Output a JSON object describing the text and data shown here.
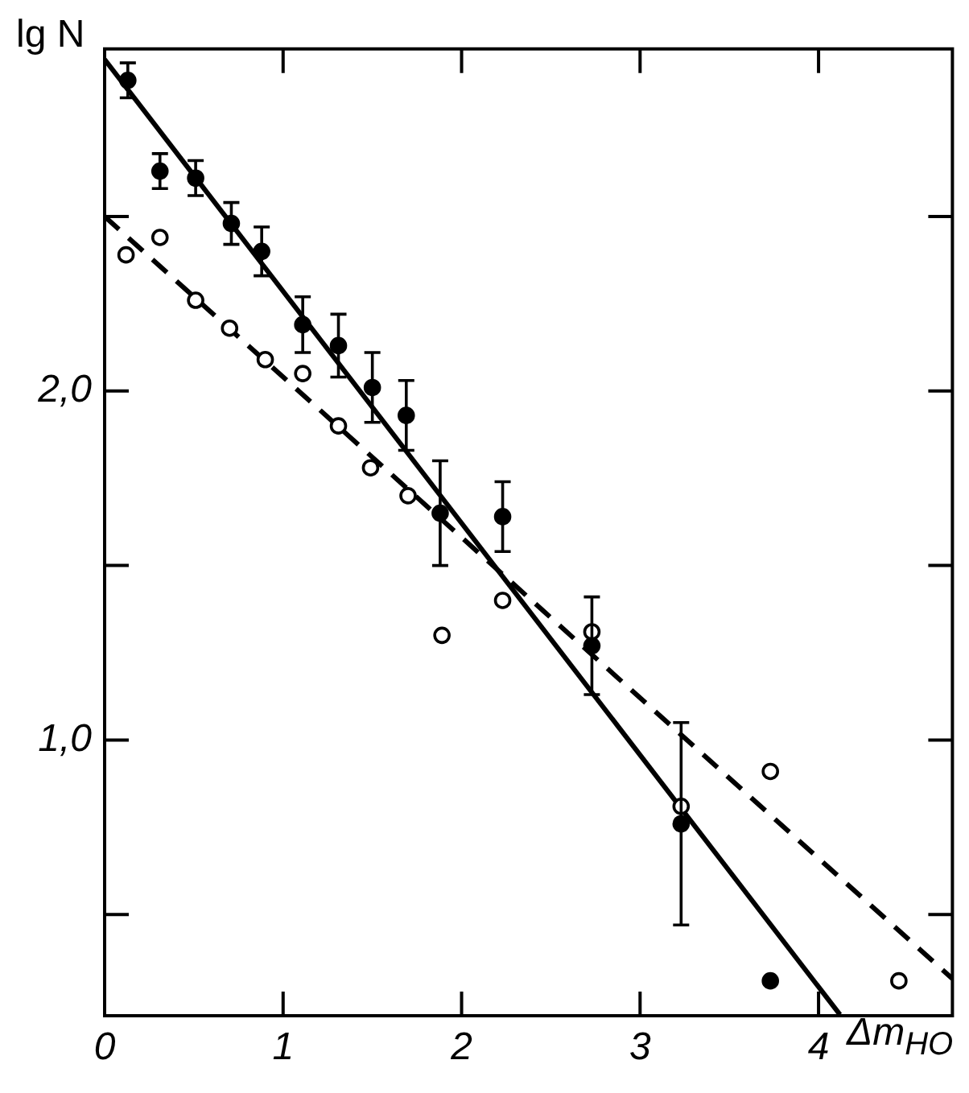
{
  "chart_data": {
    "type": "scatter",
    "xlabel": "Δm$_{HO}$",
    "ylabel": "lg N",
    "xlim": [
      0,
      4.75
    ],
    "ylim": [
      0.21,
      2.98
    ],
    "xticks": [
      0,
      1,
      2,
      3,
      4
    ],
    "yticks": [
      {
        "value": 0.5,
        "label": null
      },
      {
        "value": 1.0,
        "label": "1,0"
      },
      {
        "value": 1.5,
        "label": null
      },
      {
        "value": 2.0,
        "label": "2,0"
      },
      {
        "value": 2.5,
        "label": null
      }
    ],
    "grid": false,
    "legend": false,
    "marker": "circle",
    "series": [
      {
        "type": "scatter",
        "color": "#000000",
        "x": [
          0.13,
          0.31,
          0.51,
          0.71,
          0.88,
          1.11,
          1.31,
          1.5,
          1.69,
          1.88,
          2.23,
          2.73,
          3.23,
          3.73
        ],
        "values": [
          2.89,
          2.63,
          2.61,
          2.48,
          2.4,
          2.19,
          2.13,
          2.01,
          1.93,
          1.65,
          1.64,
          1.27,
          0.76,
          0.31
        ],
        "errors": [
          0.05,
          0.05,
          0.05,
          0.06,
          0.07,
          0.08,
          0.09,
          0.1,
          0.1,
          0.15,
          0.1,
          0.14,
          0.29,
          null
        ]
      },
      {
        "type": "scatter",
        "color": "#000000",
        "x": [
          0.12,
          0.31,
          0.51,
          0.7,
          0.9,
          1.11,
          1.31,
          1.49,
          1.7,
          1.89,
          2.23,
          2.73,
          3.23,
          3.73,
          4.45
        ],
        "values": [
          2.39,
          2.44,
          2.26,
          2.18,
          2.09,
          2.05,
          1.9,
          1.78,
          1.7,
          1.3,
          1.4,
          1.31,
          0.81,
          0.91,
          0.31
        ]
      },
      {
        "type": "line",
        "color": "#000000",
        "line_style": "solid",
        "marker": "none",
        "x": [
          0,
          4.12
        ],
        "values": [
          2.95,
          0.213
        ]
      },
      {
        "type": "line",
        "color": "#000000",
        "line_style": "dashed",
        "marker": "none",
        "x": [
          0,
          4.75
        ],
        "values": [
          2.5,
          0.316
        ]
      }
    ]
  }
}
